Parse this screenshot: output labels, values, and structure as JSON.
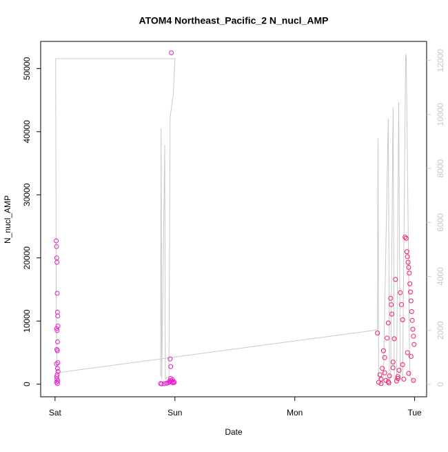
{
  "chart_data": {
    "type": "scatter",
    "title": "ATOM4 Northeast_Pacific_2 N_nucl_AMP",
    "x_label": "Date",
    "y_label": "N_nucl_AMP",
    "xlim": [
      -0.12,
      3.1
    ],
    "xticks": [
      {
        "value": 0,
        "label": "Sat"
      },
      {
        "value": 1,
        "label": "Sun"
      },
      {
        "value": 2,
        "label": "Mon"
      },
      {
        "value": 3,
        "label": "Tue"
      }
    ],
    "ylim": [
      -2000,
      54300
    ],
    "yticks": [
      0,
      10000,
      20000,
      30000,
      40000,
      50000
    ],
    "y2lim": [
      -460,
      12710
    ],
    "y2ticks": [
      0,
      2000,
      4000,
      6000,
      8000,
      10000,
      12000
    ],
    "y2color": "#c8c8c8",
    "series": [
      {
        "type": "line",
        "axis": "y2",
        "color": "#c8c8c8",
        "x": [
          0.88,
          0.885,
          0.89,
          0.915,
          0.92,
          0.95,
          0.96,
          0.975,
          0.985,
          0.995,
          1.0,
          0.005,
          0.01,
          0.015,
          2.69,
          2.694,
          2.7,
          2.74,
          2.78,
          2.79,
          2.8,
          2.82,
          2.83,
          2.85,
          2.867,
          2.88,
          2.9,
          2.925,
          2.93,
          2.96,
          2.98,
          3.0
        ],
        "values": [
          300,
          9490,
          200,
          8870,
          200,
          300,
          9900,
          10400,
          10700,
          11500,
          12070,
          12070,
          3000,
          430,
          2020,
          9130,
          200,
          300,
          9850,
          200,
          300,
          10280,
          200,
          300,
          10460,
          200,
          300,
          12250,
          12100,
          300,
          200,
          100
        ]
      },
      {
        "type": "scatter",
        "color": "#e61ec8",
        "x": [
          0.01,
          0.012,
          0.014,
          0.016,
          0.018,
          0.02,
          0.022,
          0.024,
          0.013,
          0.017,
          0.021,
          0.015,
          0.019,
          0.023,
          0.011,
          0.02,
          0.025,
          0.018,
          0.014,
          0.016,
          0.022,
          0.012,
          0.02,
          0.88,
          0.89,
          0.91,
          0.93,
          0.94,
          0.95,
          0.955,
          0.96,
          0.965,
          0.97,
          0.975,
          0.98,
          0.985,
          0.99,
          0.995,
          0.97,
          0.96,
          0.965
        ],
        "values": [
          22700,
          21800,
          20000,
          19300,
          14400,
          11400,
          10800,
          9200,
          8800,
          8500,
          6700,
          5500,
          5300,
          3400,
          3200,
          2500,
          2000,
          1500,
          1200,
          800,
          500,
          300,
          100,
          100,
          50,
          80,
          150,
          200,
          300,
          400,
          600,
          900,
          500,
          300,
          700,
          200,
          400,
          300,
          52500,
          4000,
          2800
        ]
      },
      {
        "type": "scatter",
        "color": "#f51a5f",
        "x": [
          2.69,
          2.7,
          2.71,
          2.72,
          2.73,
          2.74,
          2.75,
          2.76,
          2.77,
          2.78,
          2.785,
          2.79,
          2.8,
          2.805,
          2.81,
          2.82,
          2.83,
          2.84,
          2.85,
          2.86,
          2.87,
          2.88,
          2.89,
          2.9,
          2.91,
          2.92,
          2.93,
          2.935,
          2.94,
          2.945,
          2.95,
          2.955,
          2.96,
          2.965,
          2.97,
          2.975,
          2.98,
          2.985,
          2.99,
          2.995,
          2.75,
          2.82,
          2.9,
          2.94,
          2.97,
          2.72,
          2.78,
          2.86,
          2.95,
          2.99
        ],
        "values": [
          8100,
          300,
          1500,
          800,
          2500,
          5300,
          4200,
          600,
          7300,
          9700,
          200,
          1300,
          13600,
          12600,
          11100,
          3500,
          7200,
          16600,
          500,
          1200,
          2200,
          14500,
          12600,
          10200,
          800,
          23300,
          23100,
          21000,
          20200,
          19300,
          18500,
          17600,
          15900,
          14600,
          13200,
          11500,
          10100,
          8700,
          7600,
          6300,
          1800,
          2600,
          3100,
          5000,
          4400,
          100,
          400,
          900,
          1700,
          600
        ]
      }
    ]
  }
}
